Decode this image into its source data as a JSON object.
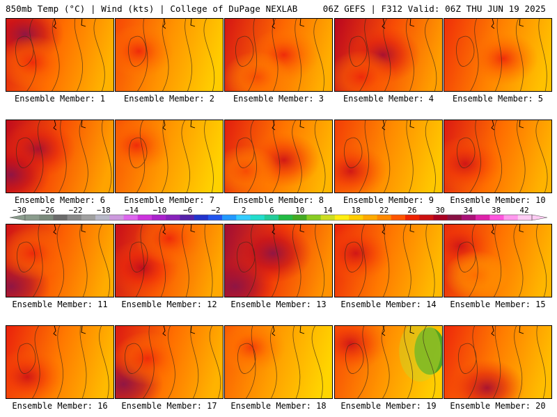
{
  "header": {
    "left": "850mb Temp (°C) | Wind (kts) | College of DuPage NEXLAB",
    "right": "06Z GEFS | F312 Valid: 06Z THU JUN 19 2025"
  },
  "members": [
    {
      "label": "Ensemble Member: 1",
      "warmth": 0.7,
      "hot": [
        [
          0.18,
          0.22,
          0.9
        ],
        [
          0.25,
          0.6,
          0.6
        ]
      ]
    },
    {
      "label": "Ensemble Member: 2",
      "warmth": 0.55,
      "hot": [
        [
          0.22,
          0.45,
          0.6
        ]
      ]
    },
    {
      "label": "Ensemble Member: 3",
      "warmth": 0.72,
      "hot": [
        [
          0.55,
          0.5,
          0.6
        ],
        [
          0.3,
          0.8,
          0.5
        ]
      ]
    },
    {
      "label": "Ensemble Member: 4",
      "warmth": 0.8,
      "hot": [
        [
          0.45,
          0.5,
          0.8
        ],
        [
          0.25,
          0.8,
          0.6
        ]
      ]
    },
    {
      "label": "Ensemble Member: 5",
      "warmth": 0.62,
      "hot": [
        [
          0.55,
          0.55,
          0.6
        ]
      ]
    },
    {
      "label": "Ensemble Member: 6",
      "warmth": 0.78,
      "hot": [
        [
          0.3,
          0.4,
          0.8
        ],
        [
          0.05,
          0.75,
          0.9
        ]
      ]
    },
    {
      "label": "Ensemble Member: 7",
      "warmth": 0.52,
      "hot": [
        [
          0.2,
          0.35,
          0.6
        ]
      ]
    },
    {
      "label": "Ensemble Member: 8",
      "warmth": 0.68,
      "hot": [
        [
          0.55,
          0.55,
          0.7
        ],
        [
          0.2,
          0.7,
          0.5
        ]
      ]
    },
    {
      "label": "Ensemble Member: 9",
      "warmth": 0.58,
      "hot": [
        [
          0.15,
          0.7,
          0.7
        ]
      ]
    },
    {
      "label": "Ensemble Member: 10",
      "warmth": 0.7,
      "hot": [
        [
          0.2,
          0.6,
          0.7
        ]
      ]
    },
    {
      "label": "Ensemble Member: 11",
      "warmth": 0.74,
      "hot": [
        [
          0.05,
          0.85,
          0.95
        ],
        [
          0.25,
          0.4,
          0.6
        ]
      ]
    },
    {
      "label": "Ensemble Member: 12",
      "warmth": 0.76,
      "hot": [
        [
          0.25,
          0.6,
          0.75
        ],
        [
          0.5,
          0.2,
          0.6
        ]
      ]
    },
    {
      "label": "Ensemble Member: 13",
      "warmth": 0.85,
      "hot": [
        [
          0.45,
          0.4,
          0.9
        ],
        [
          0.1,
          0.85,
          0.95
        ]
      ]
    },
    {
      "label": "Ensemble Member: 14",
      "warmth": 0.66,
      "hot": [
        [
          0.2,
          0.4,
          0.7
        ]
      ]
    },
    {
      "label": "Ensemble Member: 15",
      "warmth": 0.68,
      "hot": [
        [
          0.15,
          0.3,
          0.7
        ],
        [
          0.3,
          0.7,
          0.4
        ]
      ]
    },
    {
      "label": "Ensemble Member: 16",
      "warmth": 0.66,
      "hot": [
        [
          0.2,
          0.7,
          0.7
        ]
      ]
    },
    {
      "label": "Ensemble Member: 17",
      "warmth": 0.7,
      "hot": [
        [
          0.08,
          0.8,
          0.95
        ],
        [
          0.3,
          0.45,
          0.6
        ]
      ]
    },
    {
      "label": "Ensemble Member: 18",
      "warmth": 0.5,
      "hot": [
        [
          0.25,
          0.3,
          0.55
        ]
      ]
    },
    {
      "label": "Ensemble Member: 19",
      "warmth": 0.55,
      "hot": [
        [
          0.15,
          0.25,
          0.7
        ]
      ],
      "cool": [
        0.88,
        0.35
      ]
    },
    {
      "label": "Ensemble Member: 20",
      "warmth": 0.64,
      "hot": [
        [
          0.4,
          0.85,
          0.8
        ]
      ]
    }
  ],
  "colorbar": {
    "ticks": [
      "−30",
      "−26",
      "−22",
      "−18",
      "−14",
      "−10",
      "−6",
      "−2",
      "2",
      "6",
      "10",
      "14",
      "18",
      "22",
      "26",
      "30",
      "34",
      "38",
      "42"
    ],
    "colors": [
      "#8a9c8c",
      "#7a8a7c",
      "#6b6b6b",
      "#888888",
      "#a0a0a0",
      "#b8b8c8",
      "#cc99dd",
      "#dd66ee",
      "#cc33dd",
      "#aa22cc",
      "#8822bb",
      "#5522aa",
      "#2233cc",
      "#2255ee",
      "#2299ff",
      "#33ccff",
      "#22ddcc",
      "#22cc99",
      "#22bb44",
      "#44aa22",
      "#88cc22",
      "#ccdd22",
      "#ffee11",
      "#ffcc00",
      "#ffaa00",
      "#ff8800",
      "#ff5500",
      "#ee2200",
      "#cc1111",
      "#aa0022",
      "#881144",
      "#aa1177",
      "#dd22aa",
      "#ff55dd",
      "#ff99ee",
      "#ffccf4"
    ]
  }
}
